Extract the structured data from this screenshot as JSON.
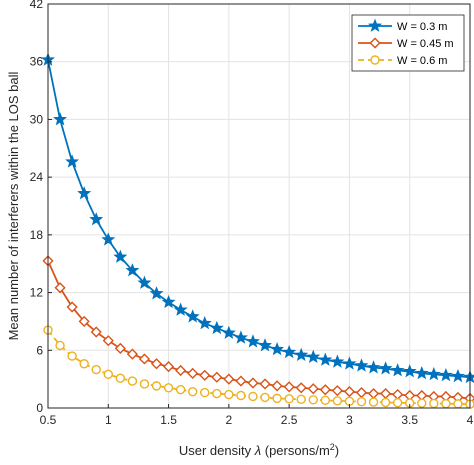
{
  "chart_data": {
    "type": "line",
    "xlabel": "User density",
    "xlabel_symbol": "λ",
    "xlabel_unit_prefix": "(persons/m",
    "xlabel_unit_sup": "2",
    "xlabel_unit_suffix": ")",
    "ylabel": "Mean number of interferers within the LOS ball",
    "xlim": [
      0.5,
      4
    ],
    "ylim": [
      0,
      42
    ],
    "x_ticks": [
      0.5,
      1,
      1.5,
      2,
      2.5,
      3,
      3.5,
      4
    ],
    "x_tick_labels": [
      "0.5",
      "1",
      "1.5",
      "2",
      "2.5",
      "3",
      "3.5",
      "4"
    ],
    "y_ticks": [
      0,
      6,
      12,
      18,
      24,
      30,
      36,
      42
    ],
    "y_tick_labels": [
      "0",
      "6",
      "12",
      "18",
      "24",
      "30",
      "36",
      "42"
    ],
    "grid": true,
    "legend_position": "top-right",
    "series": [
      {
        "name": "W = 0.3 m",
        "color": "#0072BD",
        "marker": "star",
        "x": [
          0.5,
          0.6,
          0.7,
          0.8,
          0.9,
          1.0,
          1.1,
          1.2,
          1.3,
          1.4,
          1.5,
          1.6,
          1.7,
          1.8,
          1.9,
          2.0,
          2.1,
          2.2,
          2.3,
          2.4,
          2.5,
          2.6,
          2.7,
          2.8,
          2.9,
          3.0,
          3.1,
          3.2,
          3.3,
          3.4,
          3.5,
          3.6,
          3.7,
          3.8,
          3.9,
          4.0
        ],
        "y": [
          36.2,
          30.0,
          25.6,
          22.3,
          19.6,
          17.5,
          15.7,
          14.3,
          13.0,
          11.9,
          11.0,
          10.2,
          9.5,
          8.8,
          8.3,
          7.8,
          7.3,
          6.9,
          6.5,
          6.1,
          5.8,
          5.5,
          5.3,
          5.0,
          4.8,
          4.6,
          4.4,
          4.2,
          4.1,
          3.9,
          3.8,
          3.6,
          3.5,
          3.4,
          3.3,
          3.2
        ]
      },
      {
        "name": "W = 0.45 m",
        "color": "#D95319",
        "marker": "diamond",
        "x": [
          0.5,
          0.6,
          0.7,
          0.8,
          0.9,
          1.0,
          1.1,
          1.2,
          1.3,
          1.4,
          1.5,
          1.6,
          1.7,
          1.8,
          1.9,
          2.0,
          2.1,
          2.2,
          2.3,
          2.4,
          2.5,
          2.6,
          2.7,
          2.8,
          2.9,
          3.0,
          3.1,
          3.2,
          3.3,
          3.4,
          3.5,
          3.6,
          3.7,
          3.8,
          3.9,
          4.0
        ],
        "y": [
          15.3,
          12.5,
          10.5,
          9.0,
          7.9,
          7.0,
          6.2,
          5.6,
          5.1,
          4.6,
          4.3,
          3.9,
          3.6,
          3.4,
          3.2,
          3.0,
          2.8,
          2.6,
          2.5,
          2.3,
          2.2,
          2.1,
          2.0,
          1.9,
          1.8,
          1.7,
          1.6,
          1.5,
          1.5,
          1.4,
          1.3,
          1.3,
          1.2,
          1.2,
          1.1,
          1.0
        ]
      },
      {
        "name": "W = 0.6 m",
        "color": "#EDB120",
        "marker": "circle",
        "x": [
          0.5,
          0.6,
          0.7,
          0.8,
          0.9,
          1.0,
          1.1,
          1.2,
          1.3,
          1.4,
          1.5,
          1.6,
          1.7,
          1.8,
          1.9,
          2.0,
          2.1,
          2.2,
          2.3,
          2.4,
          2.5,
          2.6,
          2.7,
          2.8,
          2.9,
          3.0,
          3.1,
          3.2,
          3.3,
          3.4,
          3.5,
          3.6,
          3.7,
          3.8,
          3.9,
          4.0
        ],
        "y": [
          8.1,
          6.5,
          5.4,
          4.6,
          4.0,
          3.5,
          3.1,
          2.8,
          2.5,
          2.3,
          2.1,
          1.9,
          1.7,
          1.6,
          1.5,
          1.4,
          1.3,
          1.2,
          1.1,
          1.0,
          0.95,
          0.9,
          0.85,
          0.8,
          0.75,
          0.7,
          0.66,
          0.62,
          0.58,
          0.55,
          0.52,
          0.5,
          0.47,
          0.45,
          0.43,
          0.4
        ]
      }
    ]
  }
}
